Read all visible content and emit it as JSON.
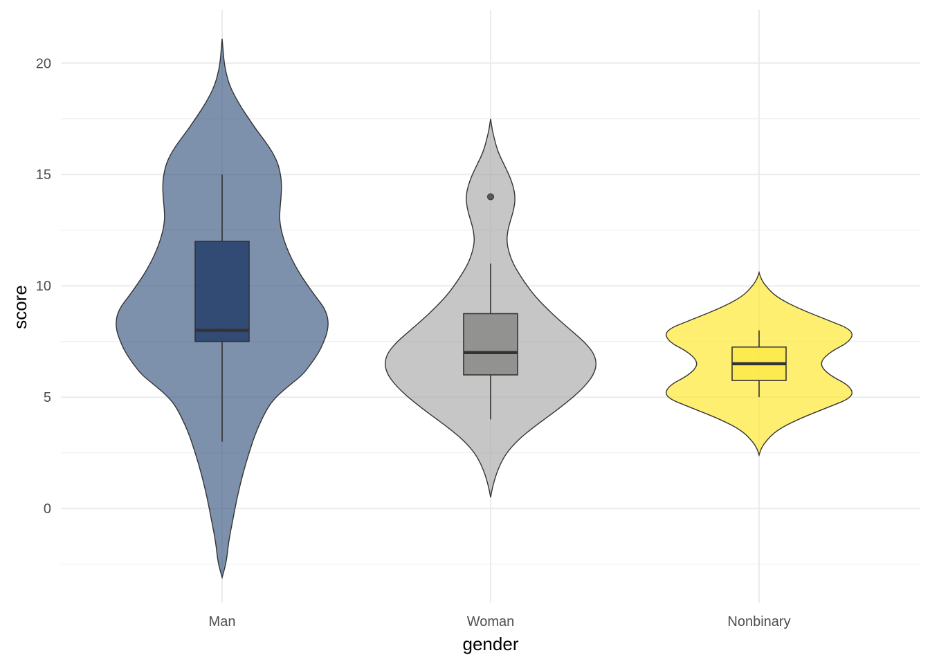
{
  "chart_data": {
    "type": "violin",
    "xlabel": "gender",
    "ylabel": "score",
    "ylim": [
      -4.25,
      22.4
    ],
    "yticks": [
      0,
      5,
      10,
      15,
      20
    ],
    "grid": true,
    "colors": {
      "grid": "#ebebeb",
      "outline": "#333333",
      "outlier": "#595959"
    },
    "groups": [
      {
        "name": "Man",
        "color": "#385580",
        "box_color": "#25406a",
        "violin": {
          "y_min": -3.1,
          "y_max": 21.1,
          "profile": [
            [
              -3.1,
              0.0
            ],
            [
              -2.4,
              0.04
            ],
            [
              -1.5,
              0.06
            ],
            [
              -0.5,
              0.1
            ],
            [
              0.5,
              0.14
            ],
            [
              1.5,
              0.19
            ],
            [
              2.5,
              0.25
            ],
            [
              3.5,
              0.32
            ],
            [
              4.5,
              0.42
            ],
            [
              5.0,
              0.5
            ],
            [
              5.5,
              0.62
            ],
            [
              6.0,
              0.75
            ],
            [
              6.5,
              0.83
            ],
            [
              7.0,
              0.9
            ],
            [
              7.5,
              0.95
            ],
            [
              8.0,
              0.985
            ],
            [
              8.5,
              0.99
            ],
            [
              9.0,
              0.955
            ],
            [
              9.5,
              0.875
            ],
            [
              10.0,
              0.8
            ],
            [
              10.5,
              0.73
            ],
            [
              11.0,
              0.67
            ],
            [
              11.5,
              0.62
            ],
            [
              12.0,
              0.58
            ],
            [
              12.5,
              0.55
            ],
            [
              13.0,
              0.535
            ],
            [
              13.5,
              0.54
            ],
            [
              14.0,
              0.55
            ],
            [
              14.5,
              0.555
            ],
            [
              15.0,
              0.545
            ],
            [
              15.5,
              0.52
            ],
            [
              16.0,
              0.47
            ],
            [
              16.5,
              0.4
            ],
            [
              17.0,
              0.32
            ],
            [
              17.5,
              0.25
            ],
            [
              18.0,
              0.18
            ],
            [
              18.5,
              0.12
            ],
            [
              19.0,
              0.07
            ],
            [
              19.5,
              0.04
            ],
            [
              20.0,
              0.02
            ],
            [
              20.5,
              0.01
            ],
            [
              21.1,
              0.0
            ]
          ]
        },
        "box": {
          "lower_whisker": 3,
          "q1": 7.5,
          "median": 8,
          "q3": 12,
          "upper_whisker": 15
        },
        "outliers": []
      },
      {
        "name": "Woman",
        "color": "#a8a8a8",
        "box_color": "#888886",
        "violin": {
          "y_min": 0.5,
          "y_max": 17.5,
          "profile": [
            [
              0.5,
              0.0
            ],
            [
              1.0,
              0.02
            ],
            [
              1.5,
              0.05
            ],
            [
              2.0,
              0.09
            ],
            [
              2.5,
              0.15
            ],
            [
              3.0,
              0.24
            ],
            [
              3.5,
              0.36
            ],
            [
              4.0,
              0.5
            ],
            [
              4.5,
              0.64
            ],
            [
              5.0,
              0.77
            ],
            [
              5.5,
              0.88
            ],
            [
              6.0,
              0.96
            ],
            [
              6.5,
              0.99
            ],
            [
              7.0,
              0.96
            ],
            [
              7.5,
              0.87
            ],
            [
              8.0,
              0.75
            ],
            [
              8.5,
              0.63
            ],
            [
              9.0,
              0.52
            ],
            [
              9.5,
              0.42
            ],
            [
              10.0,
              0.34
            ],
            [
              10.5,
              0.27
            ],
            [
              11.0,
              0.21
            ],
            [
              11.5,
              0.17
            ],
            [
              12.0,
              0.15
            ],
            [
              12.5,
              0.16
            ],
            [
              13.0,
              0.19
            ],
            [
              13.5,
              0.22
            ],
            [
              14.0,
              0.23
            ],
            [
              14.5,
              0.21
            ],
            [
              15.0,
              0.17
            ],
            [
              15.5,
              0.12
            ],
            [
              16.0,
              0.07
            ],
            [
              16.5,
              0.04
            ],
            [
              17.0,
              0.015
            ],
            [
              17.5,
              0.0
            ]
          ]
        },
        "box": {
          "lower_whisker": 4,
          "q1": 6,
          "median": 7,
          "q3": 8.75,
          "upper_whisker": 11
        },
        "outliers": [
          14
        ]
      },
      {
        "name": "Nonbinary",
        "color": "#fde725",
        "box_color": "#fde94a",
        "violin": {
          "y_min": 2.4,
          "y_max": 10.6,
          "profile": [
            [
              2.4,
              0.0
            ],
            [
              2.7,
              0.02
            ],
            [
              3.0,
              0.06
            ],
            [
              3.5,
              0.16
            ],
            [
              4.0,
              0.36
            ],
            [
              4.5,
              0.62
            ],
            [
              5.0,
              0.88
            ],
            [
              5.5,
              0.85
            ],
            [
              6.0,
              0.65
            ],
            [
              6.5,
              0.56
            ],
            [
              7.0,
              0.65
            ],
            [
              7.5,
              0.85
            ],
            [
              8.0,
              0.88
            ],
            [
              8.5,
              0.62
            ],
            [
              9.0,
              0.36
            ],
            [
              9.5,
              0.16
            ],
            [
              10.0,
              0.06
            ],
            [
              10.3,
              0.02
            ],
            [
              10.6,
              0.0
            ]
          ]
        },
        "box": {
          "lower_whisker": 5,
          "q1": 5.75,
          "median": 6.5,
          "q3": 7.25,
          "upper_whisker": 8
        },
        "outliers": []
      }
    ]
  }
}
